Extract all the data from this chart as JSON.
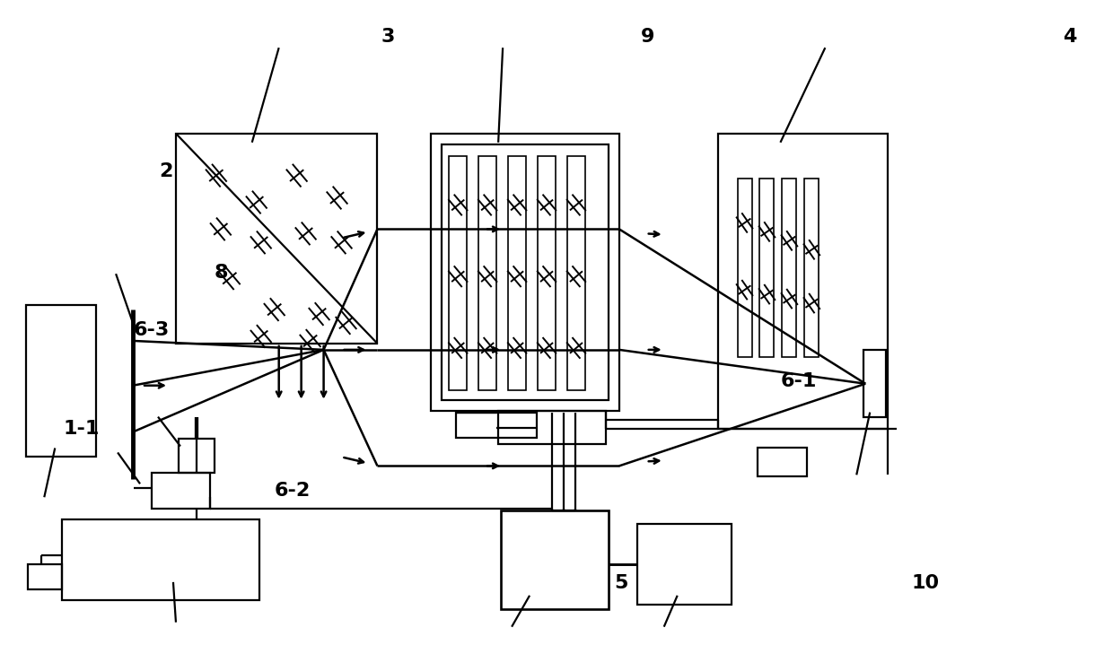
{
  "bg_color": "#ffffff",
  "lw": 1.6,
  "alw": 1.8,
  "fig_width": 12.4,
  "fig_height": 7.19,
  "labels": {
    "1_1": [
      0.072,
      0.335,
      "1-1"
    ],
    "2": [
      0.148,
      0.735,
      "2"
    ],
    "3": [
      0.348,
      0.945,
      "3"
    ],
    "4": [
      0.962,
      0.945,
      "4"
    ],
    "5": [
      0.558,
      0.095,
      "5"
    ],
    "6_1": [
      0.718,
      0.408,
      "6-1"
    ],
    "6_2": [
      0.262,
      0.238,
      "6-2"
    ],
    "6_3": [
      0.135,
      0.488,
      "6-3"
    ],
    "8": [
      0.198,
      0.578,
      "8"
    ],
    "9": [
      0.582,
      0.945,
      "9"
    ],
    "10": [
      0.832,
      0.095,
      "10"
    ]
  }
}
